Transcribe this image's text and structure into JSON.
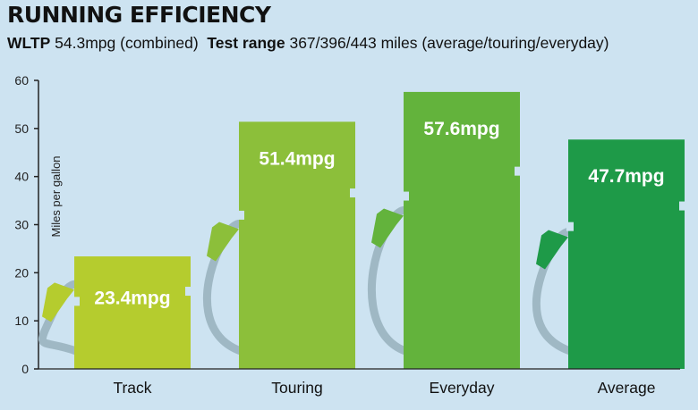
{
  "title": "RUNNING EFFICIENCY",
  "subtitle": {
    "wltp_label": "WLTP",
    "wltp_value": "54.3mpg (combined)",
    "range_label": "Test range",
    "range_value": "367/396/443 miles (average/touring/everyday)"
  },
  "chart_data": {
    "type": "bar",
    "title": "RUNNING EFFICIENCY",
    "categories": [
      "Track",
      "Touring",
      "Everyday",
      "Average"
    ],
    "values": [
      23.4,
      51.4,
      57.6,
      47.7
    ],
    "data_labels": [
      "23.4mpg",
      "51.4mpg",
      "57.6mpg",
      "47.7mpg"
    ],
    "ylabel": "Miles per gallon",
    "xlabel": "",
    "ylim": [
      0,
      60
    ],
    "yticks": [
      0,
      10,
      20,
      30,
      40,
      50,
      60
    ],
    "grid": false,
    "bar_style": "fuel-pump",
    "colors": [
      "#b5cc2e",
      "#8cbf3a",
      "#63b33c",
      "#1e9a48"
    ],
    "hose_color": "#9fb8c4"
  }
}
